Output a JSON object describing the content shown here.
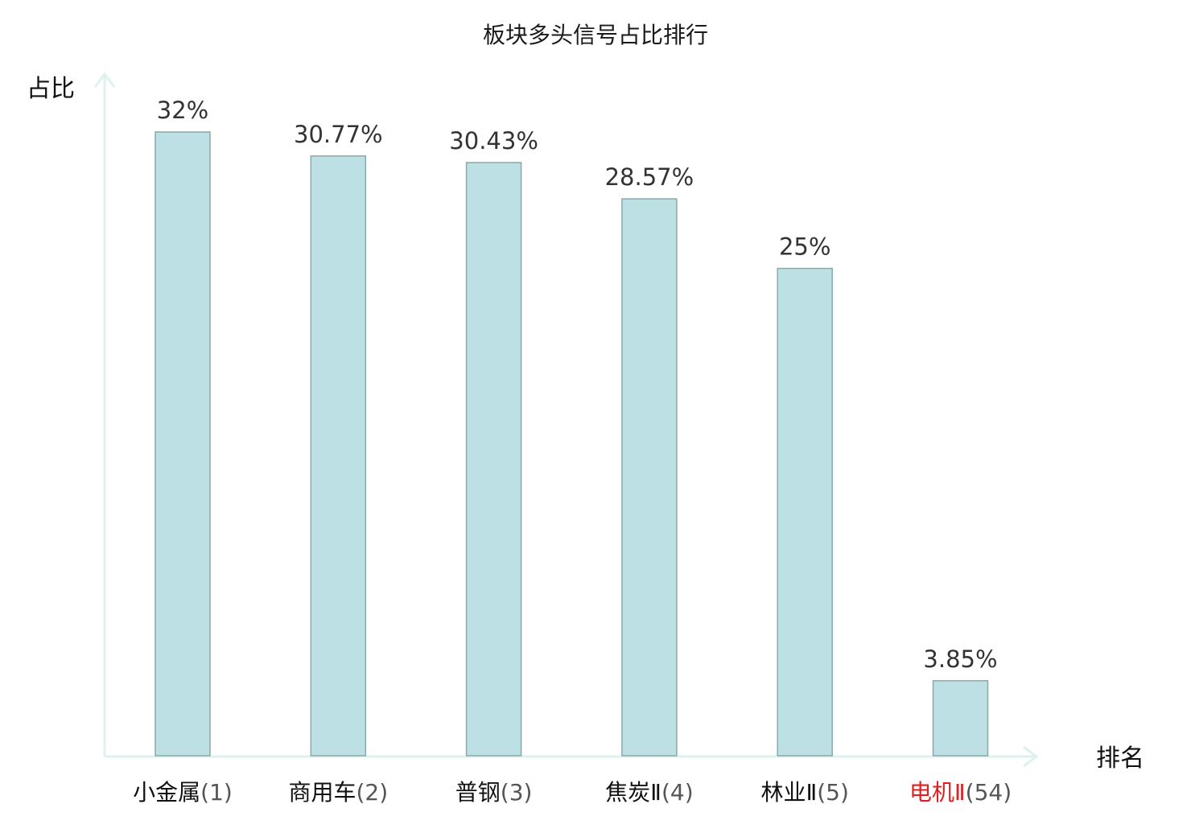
{
  "chart_data": {
    "type": "bar",
    "title": "板块多头信号占比排行",
    "ylabel": "占比",
    "xlabel": "排名",
    "categories": [
      "小金属",
      "商用车",
      "普钢",
      "焦炭Ⅱ",
      "林业Ⅱ",
      "电机Ⅱ"
    ],
    "ranks": [
      "(1)",
      "(2)",
      "(3)",
      "(4)",
      "(5)",
      "(54)"
    ],
    "values": [
      32,
      30.77,
      30.43,
      28.57,
      25,
      3.85
    ],
    "value_labels": [
      "32%",
      "30.77%",
      "30.43%",
      "28.57%",
      "25%",
      "3.85%"
    ],
    "highlight_index": 5,
    "ylim": [
      0,
      32
    ],
    "grid": false
  },
  "colors": {
    "bar_fill": "#bce0e3",
    "bar_stroke": "#8aa9aa",
    "axis": "#dff1ef",
    "highlight": "#e02020",
    "text": "#111111"
  }
}
